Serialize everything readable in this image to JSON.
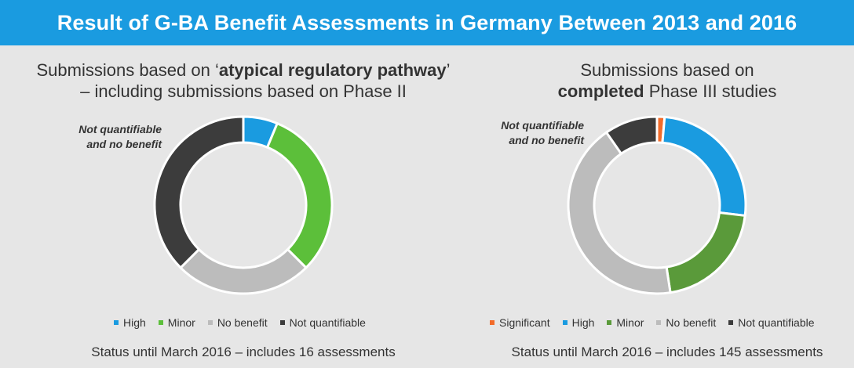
{
  "header": {
    "title": "Result of G-BA Benefit Assessments in Germany Between 2013 and 2016"
  },
  "colors": {
    "significant": "#f26b2a",
    "high": "#1a9be0",
    "minor": "#5cbf3a",
    "minor_dark": "#5a9a3a",
    "no_benefit": "#bcbcbc",
    "not_quantifiable": "#3c3c3c"
  },
  "left": {
    "title_line1_pre": "Submissions based on ‘",
    "title_line1_bold": "atypical regulatory pathway",
    "title_line1_post": "’",
    "title_line2": "– including submissions based on Phase II",
    "annotation_line1": "Not quantifiable",
    "annotation_line2": "and no benefit",
    "legend": [
      "High",
      "Minor",
      "No benefit",
      "Not quantifiable"
    ],
    "footnote": "Status until March 2016 – includes 16 assessments"
  },
  "right": {
    "title_line1": "Submissions based on",
    "title_line2_bold": "completed",
    "title_line2_post": " Phase III studies",
    "annotation_line1": "Not quantifiable",
    "annotation_line2": "and no benefit",
    "legend": [
      "Significant",
      "High",
      "Minor",
      "No benefit",
      "Not quantifiable"
    ],
    "footnote": "Status until March 2016 – includes 145 assessments"
  },
  "chart_data": [
    {
      "type": "pie",
      "variant": "donut",
      "title": "Submissions based on ‘atypical regulatory pathway’ – including submissions based on Phase II",
      "categories": [
        "High",
        "Minor",
        "No benefit",
        "Not quantifiable"
      ],
      "values": [
        1,
        5,
        4,
        6
      ],
      "colors": [
        "#1a9be0",
        "#5cbf3a",
        "#bcbcbc",
        "#3c3c3c"
      ],
      "total_assessments": 16,
      "legend_position": "bottom"
    },
    {
      "type": "pie",
      "variant": "donut",
      "title": "Submissions based on completed Phase III studies",
      "categories": [
        "Significant",
        "High",
        "Minor",
        "No benefit",
        "Not quantifiable"
      ],
      "values": [
        2,
        37,
        30,
        62,
        14
      ],
      "colors": [
        "#f26b2a",
        "#1a9be0",
        "#5a9a3a",
        "#bcbcbc",
        "#3c3c3c"
      ],
      "total_assessments": 145,
      "legend_position": "bottom"
    }
  ]
}
